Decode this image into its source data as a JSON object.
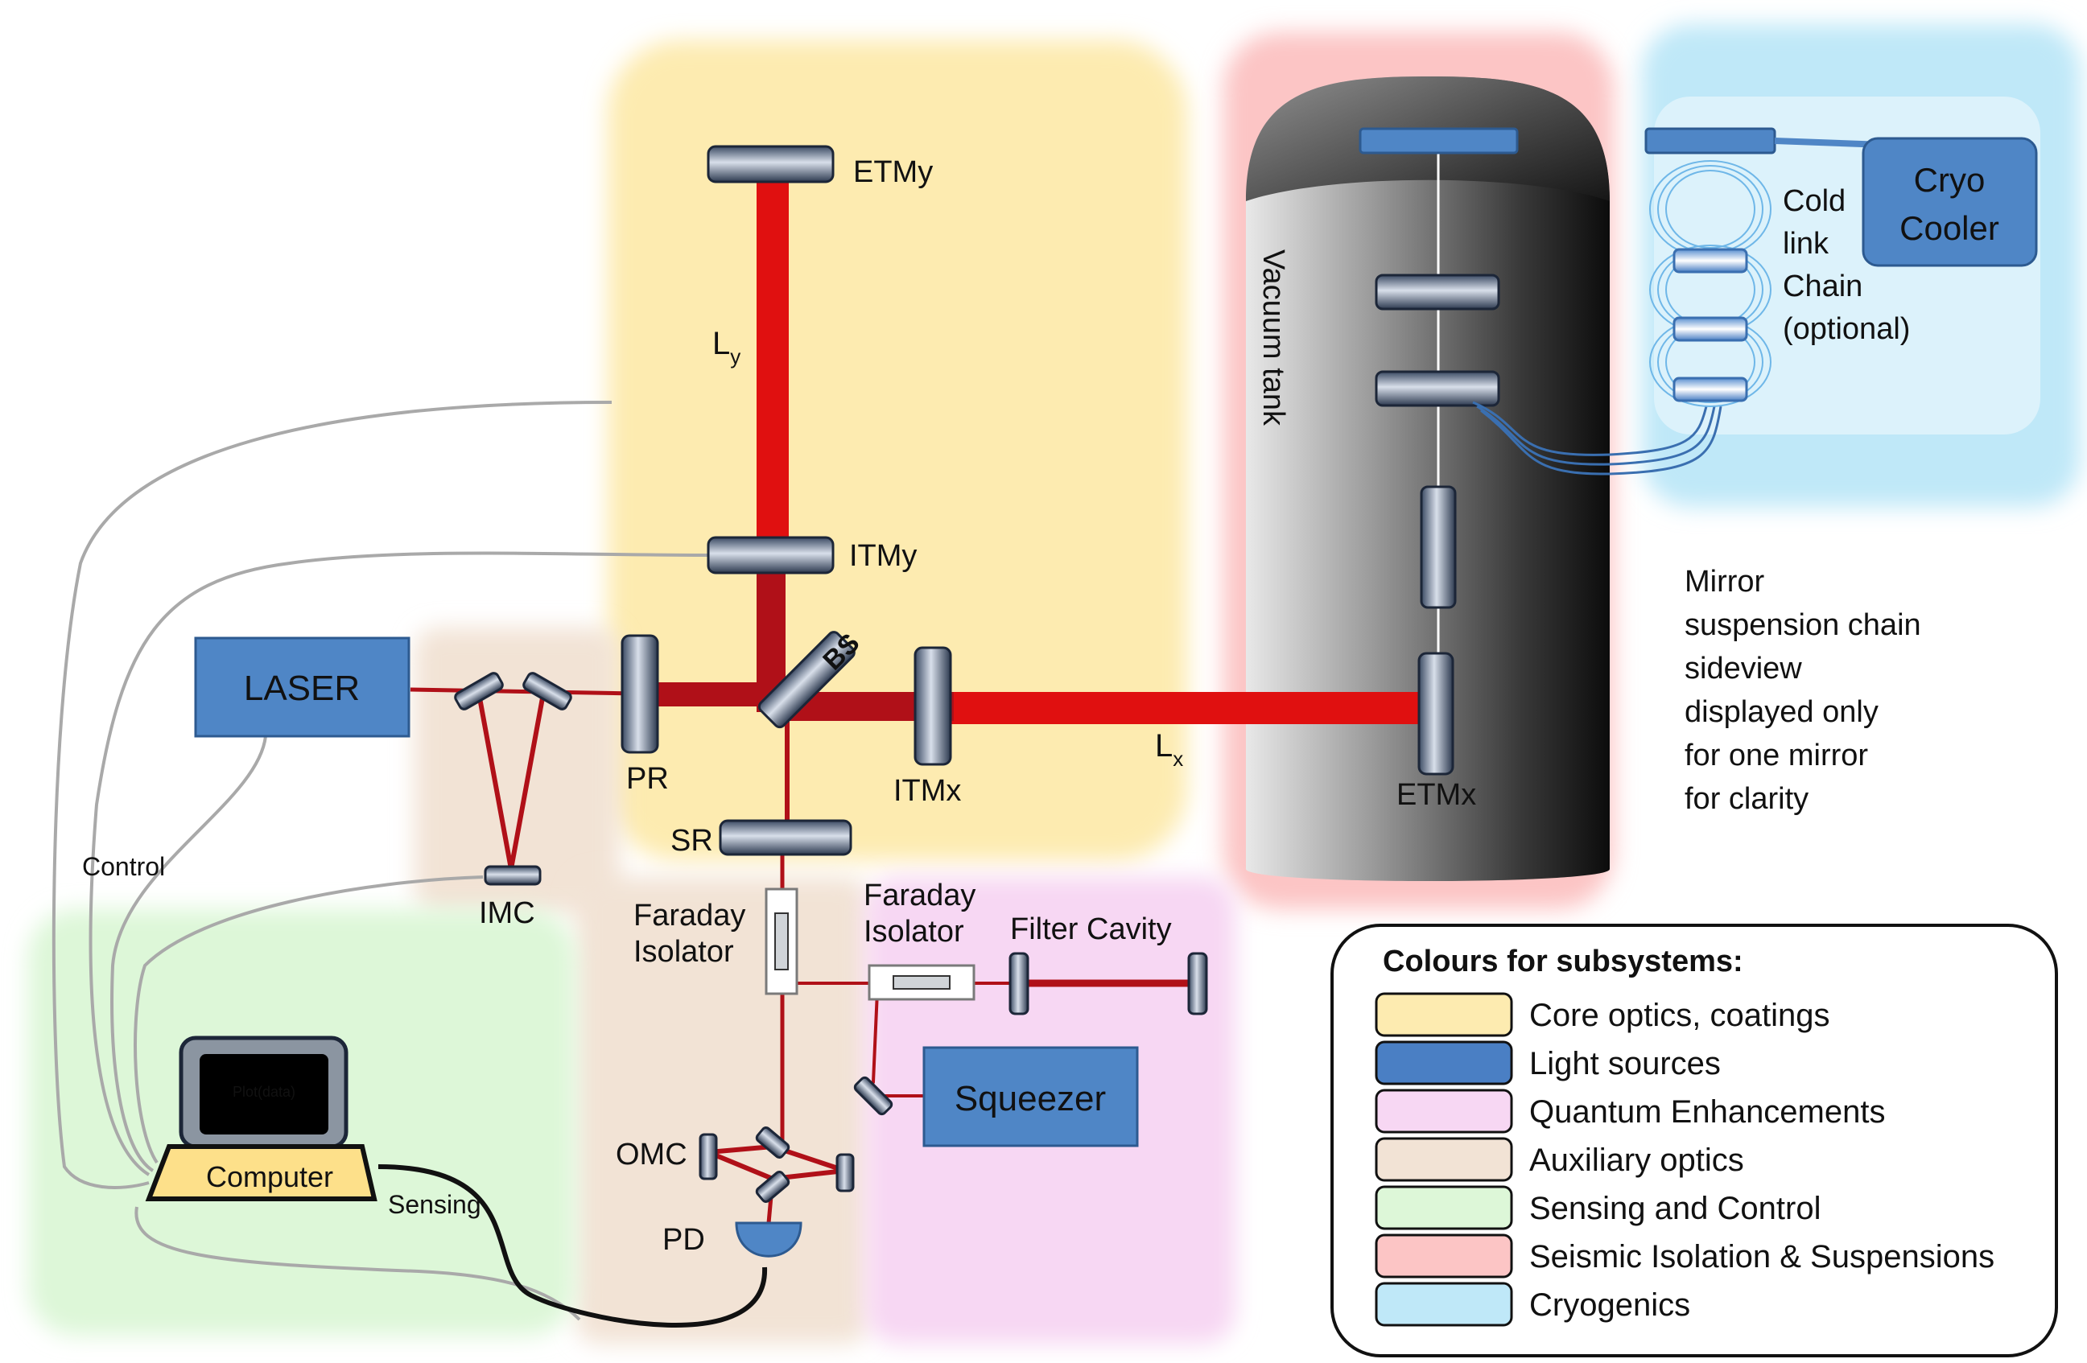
{
  "labels": {
    "etmy": "ETMy",
    "itmy": "ITMy",
    "ly": "L",
    "ly_sub": "y",
    "bs": "BS",
    "pr": "PR",
    "itmx": "ITMx",
    "lx": "L",
    "lx_sub": "x",
    "etmx": "ETMx",
    "sr": "SR",
    "laser": "LASER",
    "imc": "IMC",
    "faraday1_line1": "Faraday",
    "faraday1_line2": "Isolator",
    "faraday2_line1": "Faraday",
    "faraday2_line2": "Isolator",
    "filter_cavity": "Filter Cavity",
    "squeezer": "Squeezer",
    "omc": "OMC",
    "pd": "PD",
    "computer": "Computer",
    "screen_text": "Plot(data)",
    "control": "Control",
    "sensing": "Sensing",
    "vacuum_tank": "Vacuum tank",
    "cryo_line1": "Cryo",
    "cryo_line2": "Cooler",
    "coldlink": [
      "Cold",
      "link",
      "Chain",
      "(optional)"
    ],
    "note": [
      "Mirror",
      "suspension chain",
      "sideview",
      "displayed only",
      "for one mirror",
      "for clarity"
    ]
  },
  "legend": {
    "title": "Colours for subsystems:",
    "items": [
      {
        "label": "Core optics, coatings",
        "color": "#FDEBB0"
      },
      {
        "label": "Light sources",
        "color": "#4A7FC4"
      },
      {
        "label": "Quantum Enhancements",
        "color": "#F7D7F3"
      },
      {
        "label": "Auxiliary optics",
        "color": "#F2E3D5"
      },
      {
        "label": "Sensing and Control",
        "color": "#DDF7D8"
      },
      {
        "label": "Seismic Isolation & Suspensions",
        "color": "#FCC5C5"
      },
      {
        "label": "Cryogenics",
        "color": "#BFE8F8"
      }
    ]
  },
  "colors": {
    "beam": "#E01010",
    "beam_dark": "#B01018",
    "source_box": "#4F86C6",
    "mirror": "#7F8FA6"
  }
}
